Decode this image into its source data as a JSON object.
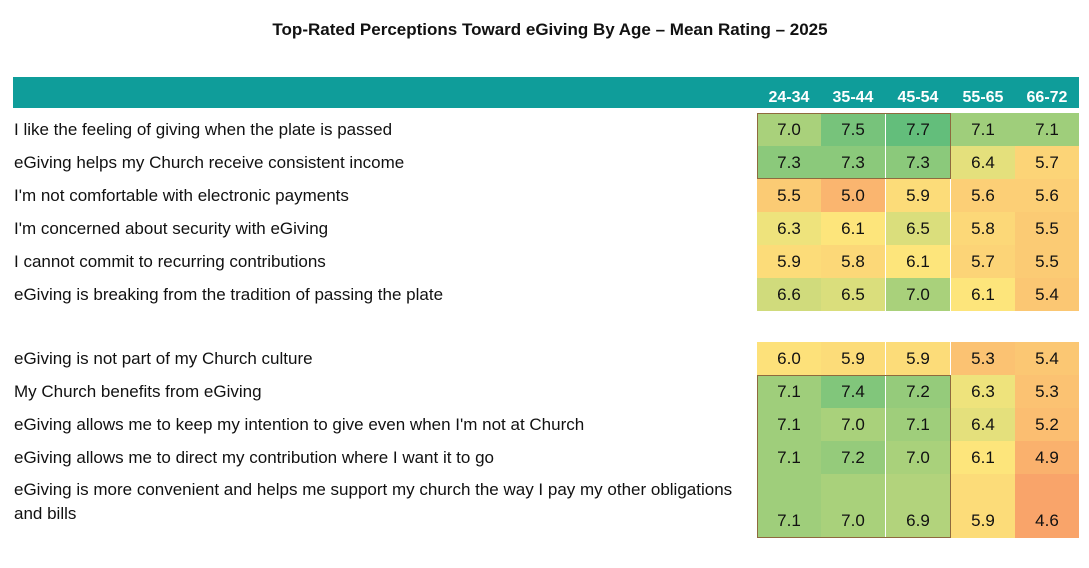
{
  "chart_data": {
    "type": "table",
    "title": "Top-Rated Perceptions Toward eGiving By Age – Mean Rating – 2025",
    "columns": [
      "24-34",
      "35-44",
      "45-54",
      "55-65",
      "66-72"
    ],
    "groups": [
      {
        "rows": [
          {
            "label": "I like the feeling of giving when the plate is passed",
            "values": [
              7.0,
              7.5,
              7.7,
              7.1,
              7.1
            ]
          },
          {
            "label": "eGiving helps my Church receive consistent income",
            "values": [
              7.3,
              7.3,
              7.3,
              6.4,
              5.7
            ]
          },
          {
            "label": "I'm not comfortable with electronic payments",
            "values": [
              5.5,
              5.0,
              5.9,
              5.6,
              5.6
            ]
          },
          {
            "label": "I'm concerned about security with eGiving",
            "values": [
              6.3,
              6.1,
              6.5,
              5.8,
              5.5
            ]
          },
          {
            "label": "I cannot commit to recurring contributions",
            "values": [
              5.9,
              5.8,
              6.1,
              5.7,
              5.5
            ]
          },
          {
            "label": "eGiving is breaking from the tradition of passing the plate",
            "values": [
              6.6,
              6.5,
              7.0,
              6.1,
              5.4
            ]
          }
        ]
      },
      {
        "rows": [
          {
            "label": "eGiving is not part of my Church culture",
            "values": [
              6.0,
              5.9,
              5.9,
              5.3,
              5.4
            ]
          },
          {
            "label": "My Church benefits from eGiving",
            "values": [
              7.1,
              7.4,
              7.2,
              6.3,
              5.3
            ]
          },
          {
            "label": "eGiving allows me to keep my intention to give even when I'm not at Church",
            "values": [
              7.1,
              7.0,
              7.1,
              6.4,
              5.2
            ]
          },
          {
            "label": "eGiving allows me to direct my contribution where I want it to go",
            "values": [
              7.1,
              7.2,
              7.0,
              6.1,
              4.9
            ]
          },
          {
            "label": "eGiving is more convenient and helps me support my church the way I pay my other obligations and bills",
            "values": [
              7.1,
              7.0,
              6.9,
              5.9,
              4.6
            ]
          }
        ]
      }
    ],
    "color_scale": {
      "low": "#f9a46a",
      "mid": "#fde77c",
      "high": "#63be7b"
    }
  }
}
